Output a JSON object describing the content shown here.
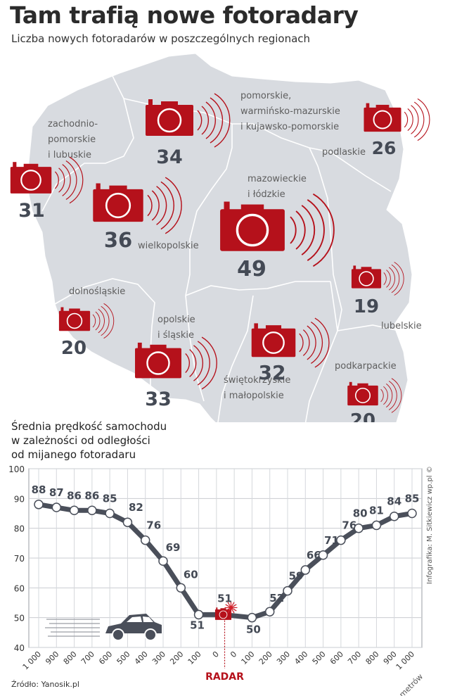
{
  "title": "Tam trafią nowe fotoradary",
  "subtitle": "Liczba nowych fotoradarów w poszczególnych regionach",
  "colors": {
    "map": "#d8dbe0",
    "map_border": "#ffffff",
    "camera": "#b5111b",
    "line": "#4a4f5a",
    "radar_label": "#b5111b"
  },
  "regions": [
    {
      "lines": [
        "zachodnio-",
        "pomorskie",
        "i lubuskie"
      ]
    },
    {
      "lines": [
        "pomorskie,",
        "warmińsko-mazurskie",
        "i kujawsko-pomorskie"
      ]
    },
    {
      "lines": [
        "podlaskie"
      ]
    },
    {
      "lines": [
        "mazowieckie",
        "i łódzkie"
      ]
    },
    {
      "lines": [
        "wielkopolskie"
      ]
    },
    {
      "lines": [
        "dolnośląskie"
      ]
    },
    {
      "lines": [
        "opolskie",
        "i śląskie"
      ]
    },
    {
      "lines": [
        "lubelskie"
      ]
    },
    {
      "lines": [
        "podkarpackie"
      ]
    },
    {
      "lines": [
        "świętokrzyskie",
        "i małopolskie"
      ]
    }
  ],
  "cameras": [
    {
      "value": "34"
    },
    {
      "value": "26"
    },
    {
      "value": "31"
    },
    {
      "value": "36"
    },
    {
      "value": "49"
    },
    {
      "value": "19"
    },
    {
      "value": "20"
    },
    {
      "value": "33"
    },
    {
      "value": "32"
    },
    {
      "value": "20"
    }
  ],
  "chart_title_lines": [
    "Średnia prędkość samochodu",
    "w zależności od odległości",
    "od mijanego fotoradaru"
  ],
  "credit": "Infografika: M. Sitkiewicz wp.pl ©",
  "source": "Źródło: Yanosik.pl",
  "radar_label": "RADAR",
  "chart_data": {
    "type": "line",
    "title": "Średnia prędkość samochodu w zależności od odległości od mijanego fotoradaru",
    "xlabel": "metrów",
    "ylabel": "",
    "ylim": [
      40,
      100
    ],
    "yticks": [
      "40",
      "50",
      "60",
      "70",
      "80",
      "90",
      "100"
    ],
    "xticks": [
      "1 000",
      "900",
      "800",
      "700",
      "600",
      "500",
      "400",
      "300",
      "200",
      "100",
      "0",
      "0",
      "100",
      "200",
      "300",
      "400",
      "500",
      "600",
      "700",
      "800",
      "900",
      "1 000"
    ],
    "x": [
      -1000,
      -900,
      -800,
      -700,
      -600,
      -500,
      -400,
      -300,
      -200,
      -100,
      0,
      100,
      200,
      300,
      400,
      500,
      600,
      700,
      800,
      900,
      1000
    ],
    "values": [
      88,
      87,
      86,
      86,
      85,
      82,
      76,
      69,
      60,
      51,
      51,
      50,
      52,
      59,
      66,
      71,
      76,
      80,
      81,
      84,
      85
    ],
    "grid": true
  }
}
